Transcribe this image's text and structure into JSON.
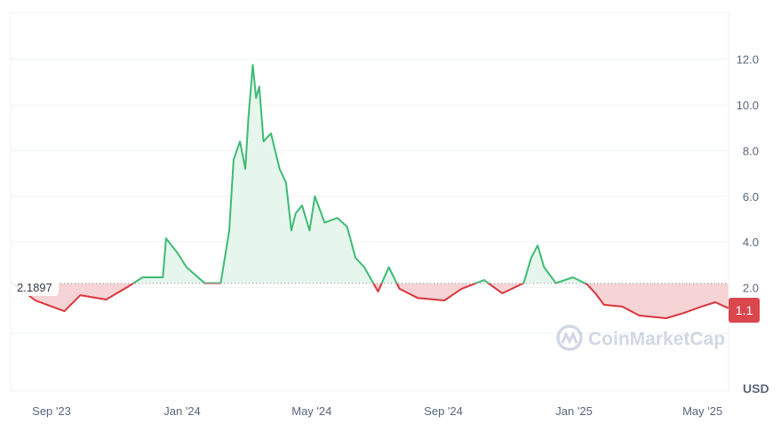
{
  "chart_data": {
    "type": "line",
    "currency_label": "USD",
    "baseline_value": 2.1897,
    "baseline_label": "2.1897",
    "current_price_label": "1.1",
    "ylim": [
      0,
      13.5
    ],
    "y_ticks": [
      "2.0",
      "4.0",
      "6.0",
      "8.0",
      "10.0",
      "12.0"
    ],
    "y_tick_values": [
      2,
      4,
      6,
      8,
      10,
      12
    ],
    "x_ticks": [
      "Sep '23",
      "Jan '24",
      "May '24",
      "Sep '24",
      "Jan '25",
      "May '25"
    ],
    "x_tick_dates": [
      "2023-09-01",
      "2024-01-01",
      "2024-05-01",
      "2024-09-01",
      "2025-01-01",
      "2025-05-01"
    ],
    "grid": true,
    "colors": {
      "above": "#16c784",
      "line_above": "#3dbb74",
      "below": "#d9363e",
      "fill_above": "#e6f6ec",
      "fill_below": "#f6d3d4",
      "label_bg": "#d9474d"
    },
    "watermark": "CoinMarketCap",
    "series": [
      {
        "x": [
          "2023-07-25",
          "2023-08-17",
          "2023-09-13",
          "2023-09-28",
          "2023-10-22",
          "2023-11-12",
          "2023-11-25",
          "2023-12-14",
          "2023-12-17",
          "2023-12-28",
          "2024-01-05",
          "2024-01-22",
          "2024-02-06",
          "2024-02-14",
          "2024-02-18",
          "2024-02-24",
          "2024-02-29",
          "2024-03-03",
          "2024-03-07",
          "2024-03-10",
          "2024-03-13",
          "2024-03-17",
          "2024-03-24",
          "2024-04-01",
          "2024-04-07",
          "2024-04-12",
          "2024-04-16",
          "2024-04-22",
          "2024-04-29",
          "2024-05-04",
          "2024-05-13",
          "2024-05-25",
          "2024-06-03",
          "2024-06-11",
          "2024-06-19",
          "2024-07-02",
          "2024-07-12",
          "2024-07-22",
          "2024-08-08",
          "2024-09-02",
          "2024-09-18",
          "2024-10-09",
          "2024-10-26",
          "2024-11-15",
          "2024-11-22",
          "2024-11-28",
          "2024-12-04",
          "2024-12-15",
          "2024-12-31",
          "2025-01-13",
          "2025-01-21",
          "2025-01-29",
          "2025-02-15",
          "2025-03-03",
          "2025-03-28",
          "2025-04-14",
          "2025-04-30",
          "2025-05-13",
          "2025-05-25"
        ],
        "y": [
          2.25,
          1.44,
          0.97,
          1.67,
          1.48,
          2.06,
          2.45,
          2.45,
          4.16,
          3.5,
          2.9,
          2.2,
          2.2,
          4.5,
          7.6,
          8.4,
          7.2,
          9.5,
          11.75,
          10.3,
          10.8,
          8.4,
          8.75,
          7.2,
          6.6,
          4.5,
          5.25,
          5.6,
          4.5,
          6.0,
          4.85,
          5.05,
          4.67,
          3.3,
          2.9,
          1.83,
          2.9,
          1.95,
          1.55,
          1.44,
          1.95,
          2.33,
          1.75,
          2.2,
          3.3,
          3.85,
          2.9,
          2.2,
          2.45,
          2.15,
          1.75,
          1.25,
          1.17,
          0.78,
          0.66,
          0.9,
          1.17,
          1.36,
          1.1
        ]
      }
    ]
  }
}
